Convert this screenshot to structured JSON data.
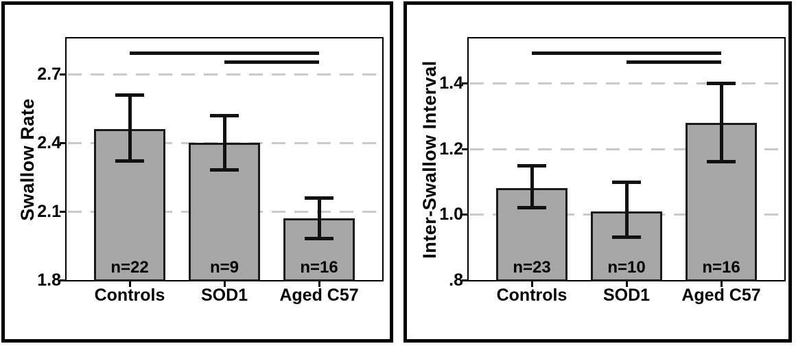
{
  "colors": {
    "background": "#ffffff",
    "frame": "#000000",
    "bar_fill": "#a7a7a7",
    "bar_border": "#1a1a1a",
    "gridline": "#c9c9c9",
    "error_bar": "#111111",
    "significance_line": "#111111",
    "text": "#000000"
  },
  "chart_data": [
    {
      "type": "bar",
      "title": "",
      "xlabel": "",
      "ylabel": "Swallow Rate",
      "categories": [
        "Controls",
        "SOD1",
        "Aged C57"
      ],
      "values": [
        2.46,
        2.4,
        2.07
      ],
      "error_low": [
        2.32,
        2.28,
        1.98
      ],
      "error_high": [
        2.61,
        2.52,
        2.16
      ],
      "n_labels": [
        "n=22",
        "n=9",
        "n=16"
      ],
      "yticks": [
        1.8,
        2.1,
        2.4,
        2.7
      ],
      "ytick_labels": [
        "1.8",
        "2.1",
        "2.4",
        "2.7"
      ],
      "ylim": [
        1.8,
        2.856
      ],
      "grid": "horizontal-dashed-at-ticks-above-baseline",
      "legend": "none",
      "significance_pairs": [
        [
          "Controls",
          "Aged C57"
        ],
        [
          "SOD1",
          "Aged C57"
        ]
      ]
    },
    {
      "type": "bar",
      "title": "",
      "xlabel": "",
      "ylabel": "Inter-Swallow Interval",
      "categories": [
        "Controls",
        "SOD1",
        "Aged C57"
      ],
      "values": [
        1.08,
        1.01,
        1.28
      ],
      "error_low": [
        1.02,
        0.93,
        1.16
      ],
      "error_high": [
        1.15,
        1.1,
        1.4
      ],
      "n_labels": [
        "n=23",
        "n=10",
        "n=16"
      ],
      "yticks": [
        0.8,
        1.0,
        1.2,
        1.4
      ],
      "ytick_labels": [
        ".8",
        "1.0",
        "1.2",
        "1.4"
      ],
      "ylim": [
        0.8,
        1.537
      ],
      "grid": "horizontal-dashed-at-ticks-above-baseline",
      "legend": "none",
      "significance_pairs": [
        [
          "Controls",
          "Aged C57"
        ],
        [
          "SOD1",
          "Aged C57"
        ]
      ]
    }
  ]
}
